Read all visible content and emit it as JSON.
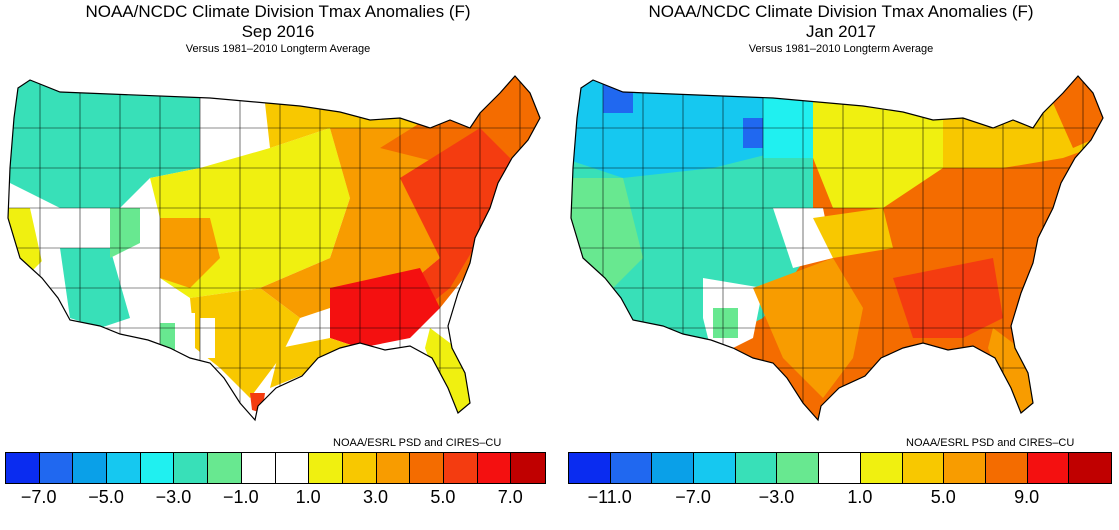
{
  "panels": [
    {
      "title": "NOAA/NCDC Climate Division Tmax Anomalies (F)",
      "period": "Sep 2016",
      "subtitle": "Versus 1981–2010 Longterm Average",
      "credit": "NOAA/ESRL PSD and CIRES–CU",
      "colorbar": {
        "colors": [
          "#0a2cf0",
          "#2068f0",
          "#0aa0e8",
          "#16c8f0",
          "#20f0f0",
          "#38e0b8",
          "#68e890",
          "#ffffff",
          "#ffffff",
          "#f0f010",
          "#f8c800",
          "#f89c00",
          "#f46c00",
          "#f43c10",
          "#f41010",
          "#c00000"
        ],
        "tick_labels": [
          "−7.0",
          "−5.0",
          "−3.0",
          "−1.0",
          "1.0",
          "3.0",
          "5.0",
          "7.0"
        ]
      }
    },
    {
      "title": "NOAA/NCDC Climate Division Tmax Anomalies (F)",
      "period": "Jan 2017",
      "subtitle": "Versus 1981–2010 Longterm Average",
      "credit": "NOAA/ESRL PSD and CIRES–CU",
      "colorbar": {
        "colors": [
          "#0a2cf0",
          "#2068f0",
          "#0aa0e8",
          "#16c8f0",
          "#38e0b8",
          "#68e890",
          "#ffffff",
          "#f0f010",
          "#f8c800",
          "#f89c00",
          "#f46c00",
          "#f41010",
          "#c00000"
        ],
        "tick_labels": [
          "−11.0",
          "−7.0",
          "−3.0",
          "1.0",
          "5.0",
          "9.0"
        ]
      }
    }
  ]
}
